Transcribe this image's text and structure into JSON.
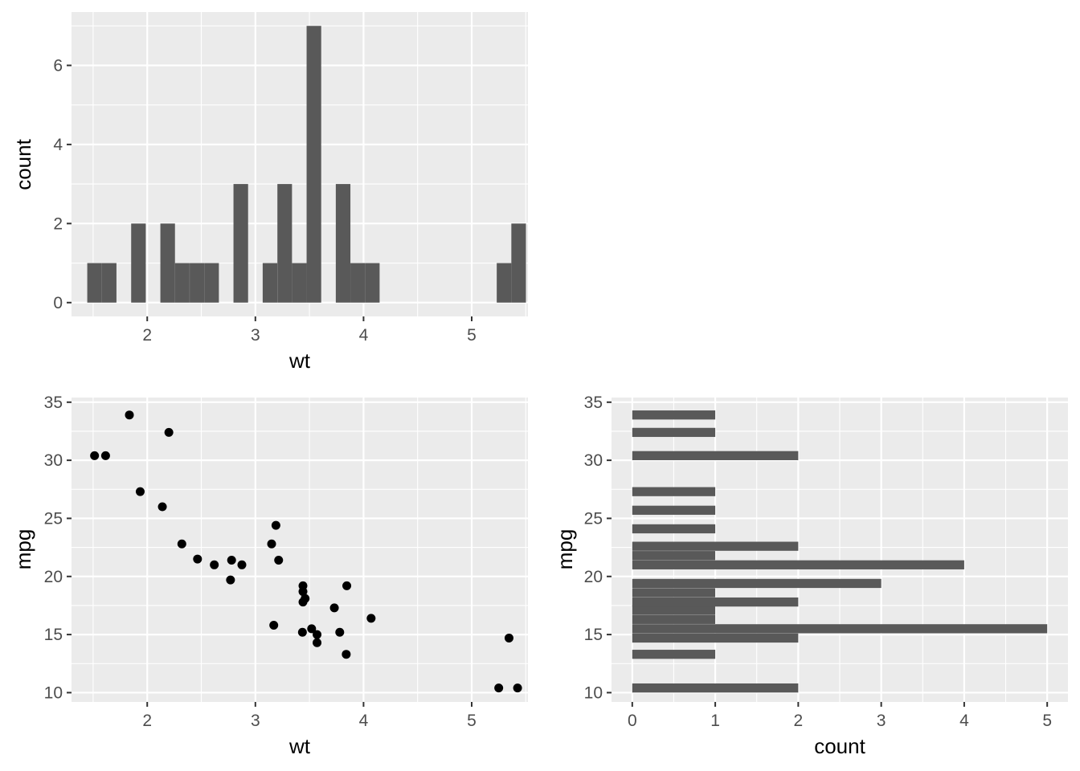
{
  "chart_data": [
    {
      "type": "bar",
      "subtype": "histogram",
      "xlabel": "wt",
      "ylabel": "count",
      "xlim": [
        1.3,
        5.52
      ],
      "ylim": [
        -0.35,
        7.35
      ],
      "xticks": [
        "2",
        "3",
        "4",
        "5"
      ],
      "yticks": [
        "0",
        "2",
        "4",
        "6"
      ],
      "bin_width": 0.135,
      "bins": [
        {
          "x": 1.513,
          "count": 1
        },
        {
          "x": 1.648,
          "count": 1
        },
        {
          "x": 1.919,
          "count": 2
        },
        {
          "x": 2.189,
          "count": 2
        },
        {
          "x": 2.324,
          "count": 1
        },
        {
          "x": 2.46,
          "count": 1
        },
        {
          "x": 2.595,
          "count": 1
        },
        {
          "x": 2.865,
          "count": 3
        },
        {
          "x": 3.135,
          "count": 1
        },
        {
          "x": 3.271,
          "count": 3
        },
        {
          "x": 3.406,
          "count": 1
        },
        {
          "x": 3.541,
          "count": 7
        },
        {
          "x": 3.811,
          "count": 3
        },
        {
          "x": 3.946,
          "count": 1
        },
        {
          "x": 4.081,
          "count": 1
        },
        {
          "x": 5.299,
          "count": 1
        },
        {
          "x": 5.434,
          "count": 2
        }
      ]
    },
    {
      "type": "scatter",
      "xlabel": "wt",
      "ylabel": "mpg",
      "xlim": [
        1.3,
        5.52
      ],
      "ylim": [
        9.2,
        35.4
      ],
      "xticks": [
        "2",
        "3",
        "4",
        "5"
      ],
      "yticks": [
        "10",
        "15",
        "20",
        "25",
        "30",
        "35"
      ],
      "points": [
        {
          "x": 2.62,
          "y": 21.0
        },
        {
          "x": 2.875,
          "y": 21.0
        },
        {
          "x": 2.32,
          "y": 22.8
        },
        {
          "x": 3.215,
          "y": 21.4
        },
        {
          "x": 3.44,
          "y": 18.7
        },
        {
          "x": 3.46,
          "y": 18.1
        },
        {
          "x": 3.57,
          "y": 14.3
        },
        {
          "x": 3.19,
          "y": 24.4
        },
        {
          "x": 3.15,
          "y": 22.8
        },
        {
          "x": 3.44,
          "y": 19.2
        },
        {
          "x": 3.44,
          "y": 17.8
        },
        {
          "x": 4.07,
          "y": 16.4
        },
        {
          "x": 3.73,
          "y": 17.3
        },
        {
          "x": 3.78,
          "y": 15.2
        },
        {
          "x": 5.25,
          "y": 10.4
        },
        {
          "x": 5.424,
          "y": 10.4
        },
        {
          "x": 5.345,
          "y": 14.7
        },
        {
          "x": 2.2,
          "y": 32.4
        },
        {
          "x": 1.615,
          "y": 30.4
        },
        {
          "x": 1.835,
          "y": 33.9
        },
        {
          "x": 2.465,
          "y": 21.5
        },
        {
          "x": 3.52,
          "y": 15.5
        },
        {
          "x": 3.435,
          "y": 15.2
        },
        {
          "x": 3.84,
          "y": 13.3
        },
        {
          "x": 3.845,
          "y": 19.2
        },
        {
          "x": 1.935,
          "y": 27.3
        },
        {
          "x": 2.14,
          "y": 26.0
        },
        {
          "x": 1.513,
          "y": 30.4
        },
        {
          "x": 3.17,
          "y": 15.8
        },
        {
          "x": 2.77,
          "y": 19.7
        },
        {
          "x": 3.57,
          "y": 15.0
        },
        {
          "x": 2.78,
          "y": 21.4
        }
      ]
    },
    {
      "type": "bar",
      "subtype": "histogram-horizontal",
      "xlabel": "count",
      "ylabel": "mpg",
      "xlim": [
        -0.25,
        5.25
      ],
      "ylim": [
        9.2,
        35.4
      ],
      "xticks": [
        "0",
        "1",
        "2",
        "3",
        "4",
        "5"
      ],
      "yticks": [
        "10",
        "15",
        "20",
        "25",
        "30",
        "35"
      ],
      "bin_width": 0.781,
      "bins": [
        {
          "y": 10.4,
          "count": 2
        },
        {
          "y": 13.3,
          "count": 1
        },
        {
          "y": 14.7,
          "count": 2
        },
        {
          "y": 15.5,
          "count": 5
        },
        {
          "y": 16.3,
          "count": 1
        },
        {
          "y": 17.1,
          "count": 1
        },
        {
          "y": 17.8,
          "count": 2
        },
        {
          "y": 18.6,
          "count": 1
        },
        {
          "y": 19.4,
          "count": 3
        },
        {
          "y": 21.0,
          "count": 4
        },
        {
          "y": 21.8,
          "count": 1
        },
        {
          "y": 22.6,
          "count": 2
        },
        {
          "y": 24.1,
          "count": 1
        },
        {
          "y": 25.7,
          "count": 1
        },
        {
          "y": 27.3,
          "count": 1
        },
        {
          "y": 30.4,
          "count": 2
        },
        {
          "y": 32.4,
          "count": 1
        },
        {
          "y": 33.9,
          "count": 1
        }
      ]
    }
  ]
}
